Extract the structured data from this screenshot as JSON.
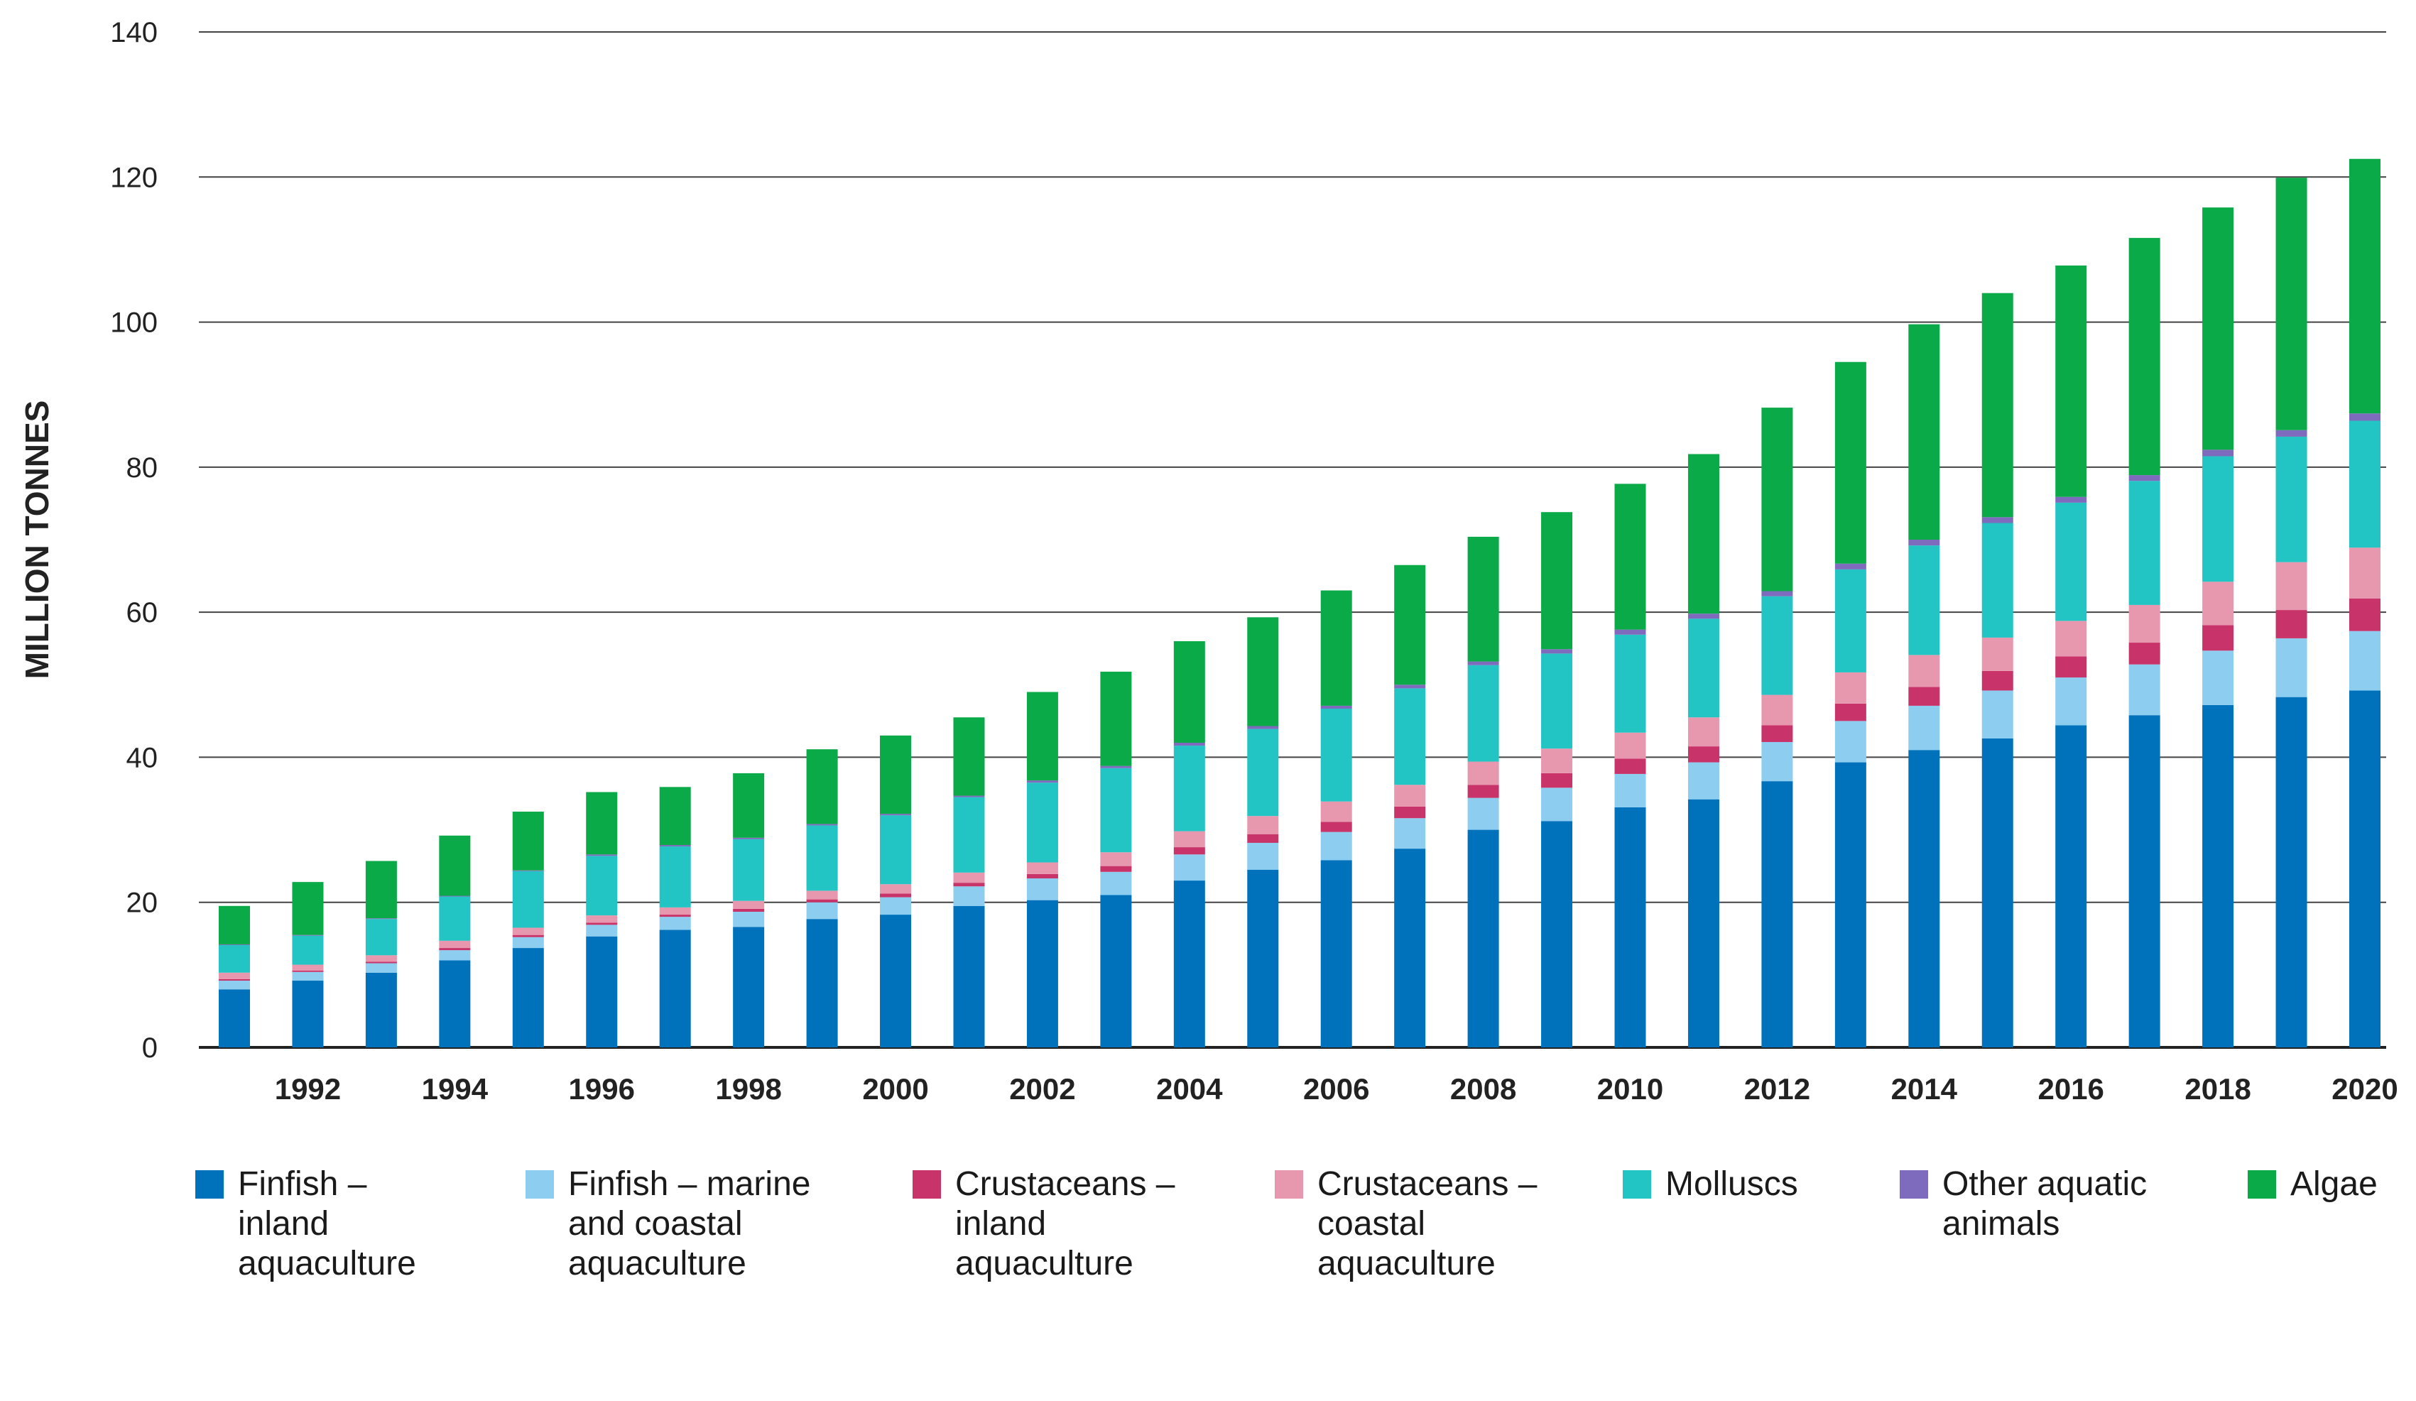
{
  "chart_data": {
    "type": "bar",
    "stacked": true,
    "title": "",
    "ylabel": "MILLION TONNES",
    "xlabel": "",
    "ylim": [
      0,
      140
    ],
    "yticks": [
      0,
      20,
      40,
      60,
      80,
      100,
      120,
      140
    ],
    "grid": "horizontal",
    "legend_position": "bottom",
    "categories": [
      1991,
      1992,
      1993,
      1994,
      1995,
      1996,
      1997,
      1998,
      1999,
      2000,
      2001,
      2002,
      2003,
      2004,
      2005,
      2006,
      2007,
      2008,
      2009,
      2010,
      2011,
      2012,
      2013,
      2014,
      2015,
      2016,
      2017,
      2018,
      2019,
      2020
    ],
    "xtick_labels": [
      "1992",
      "1994",
      "1996",
      "1998",
      "2000",
      "2002",
      "2004",
      "2006",
      "2008",
      "2010",
      "2012",
      "2014",
      "2016",
      "2018",
      "2020"
    ],
    "series": [
      {
        "name": "Finfish –\ninland\naquaculture",
        "color": "#0072bc",
        "values": [
          8,
          9.2,
          10.3,
          12,
          13.7,
          15.3,
          16.2,
          16.6,
          17.7,
          18.3,
          19.5,
          20.3,
          21,
          23,
          24.5,
          25.8,
          27.4,
          30,
          31.2,
          33.1,
          34.2,
          36.7,
          39.3,
          41,
          42.6,
          44.4,
          45.8,
          47.2,
          48.3,
          49.2
        ]
      },
      {
        "name": "Finfish – marine\nand coastal\naquaculture",
        "color": "#8ccdf0",
        "values": [
          1.2,
          1.2,
          1.3,
          1.4,
          1.5,
          1.6,
          1.8,
          2.1,
          2.3,
          2.4,
          2.7,
          3,
          3.2,
          3.6,
          3.7,
          3.9,
          4.2,
          4.4,
          4.6,
          4.6,
          5.1,
          5.4,
          5.7,
          6.1,
          6.6,
          6.6,
          7,
          7.5,
          8.1,
          8.2
        ]
      },
      {
        "name": "Crustaceans –\ninland\naquaculture",
        "color": "#c8336a",
        "values": [
          0.2,
          0.2,
          0.2,
          0.3,
          0.3,
          0.3,
          0.3,
          0.4,
          0.4,
          0.5,
          0.5,
          0.6,
          0.8,
          1,
          1.2,
          1.4,
          1.6,
          1.8,
          2,
          2.1,
          2.2,
          2.3,
          2.4,
          2.6,
          2.7,
          2.9,
          3,
          3.5,
          3.9,
          4.5
        ]
      },
      {
        "name": "Crustaceans –\ncoastal\naquaculture",
        "color": "#e898ae",
        "values": [
          0.9,
          0.8,
          0.9,
          1,
          1,
          1,
          1,
          1.1,
          1.2,
          1.3,
          1.4,
          1.6,
          1.9,
          2.2,
          2.5,
          2.8,
          3,
          3.2,
          3.4,
          3.6,
          4,
          4.2,
          4.3,
          4.4,
          4.6,
          4.9,
          5.2,
          6,
          6.6,
          7
        ]
      },
      {
        "name": "Molluscs",
        "color": "#22c4c4",
        "values": [
          3.8,
          4,
          5,
          6.1,
          7.8,
          8.2,
          8.4,
          8.5,
          9,
          9.5,
          10.4,
          11,
          11.6,
          11.8,
          12,
          12.8,
          13.3,
          13.3,
          13.1,
          13.5,
          13.6,
          13.6,
          14.2,
          15.1,
          15.8,
          16.3,
          17.1,
          17.3,
          17.3,
          17.5
        ]
      },
      {
        "name": "Other aquatic\nanimals",
        "color": "#7f6bbd",
        "values": [
          0.1,
          0.1,
          0.1,
          0.1,
          0.1,
          0.2,
          0.2,
          0.2,
          0.2,
          0.2,
          0.2,
          0.3,
          0.3,
          0.4,
          0.4,
          0.4,
          0.5,
          0.5,
          0.6,
          0.7,
          0.7,
          0.7,
          0.8,
          0.8,
          0.8,
          0.8,
          0.8,
          0.9,
          0.9,
          1
        ]
      },
      {
        "name": "Algae",
        "color": "#0aaa48",
        "values": [
          5.3,
          7.3,
          7.9,
          8.3,
          8.1,
          8.6,
          8,
          8.9,
          10.3,
          10.8,
          10.8,
          12.2,
          13,
          14,
          15,
          15.9,
          16.5,
          17.2,
          18.9,
          20.1,
          22,
          25.3,
          27.8,
          29.7,
          30.9,
          31.9,
          32.7,
          33.4,
          34.8,
          35.1
        ]
      }
    ]
  }
}
